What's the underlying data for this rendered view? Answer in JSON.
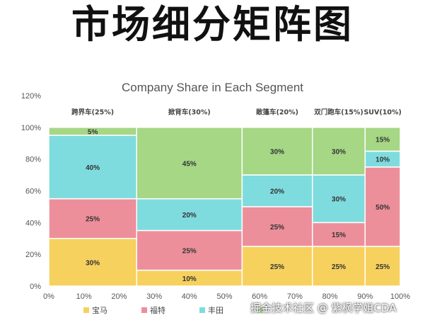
{
  "banner": {
    "title": "市场细分矩阵图"
  },
  "watermark": "掘金技术社区 @ 紫枫学姐CDA",
  "chart_data": {
    "type": "marimekko",
    "title": "Company Share in Each Segment",
    "x_ticks": [
      "0%",
      "10%",
      "20%",
      "30%",
      "40%",
      "50%",
      "60%",
      "70%",
      "80%",
      "90%",
      "100%"
    ],
    "y_ticks": [
      "0%",
      "20%",
      "40%",
      "60%",
      "80%",
      "100%",
      "120%"
    ],
    "ylim": [
      0,
      120
    ],
    "xlim": [
      0,
      100
    ],
    "segments": [
      {
        "label": "跨界车(25%)",
        "width": 25,
        "values": [
          30,
          25,
          40,
          5
        ]
      },
      {
        "label": "掀背车(30%)",
        "width": 30,
        "values": [
          10,
          25,
          20,
          45
        ]
      },
      {
        "label": "敞篷车(20%)",
        "width": 20,
        "values": [
          25,
          25,
          20,
          30
        ]
      },
      {
        "label": "双门跑车(15%)",
        "width": 15,
        "values": [
          25,
          15,
          30,
          30
        ]
      },
      {
        "label": "SUV(10%)",
        "width": 10,
        "values": [
          25,
          50,
          10,
          15
        ]
      }
    ],
    "series": [
      {
        "name": "宝马",
        "color": "#f7d15e"
      },
      {
        "name": "福特",
        "color": "#ec8f9b"
      },
      {
        "name": "丰田",
        "color": "#7fdcde"
      },
      {
        "name": "",
        "color": "#a5d785"
      }
    ],
    "legend_position": "bottom-left"
  }
}
